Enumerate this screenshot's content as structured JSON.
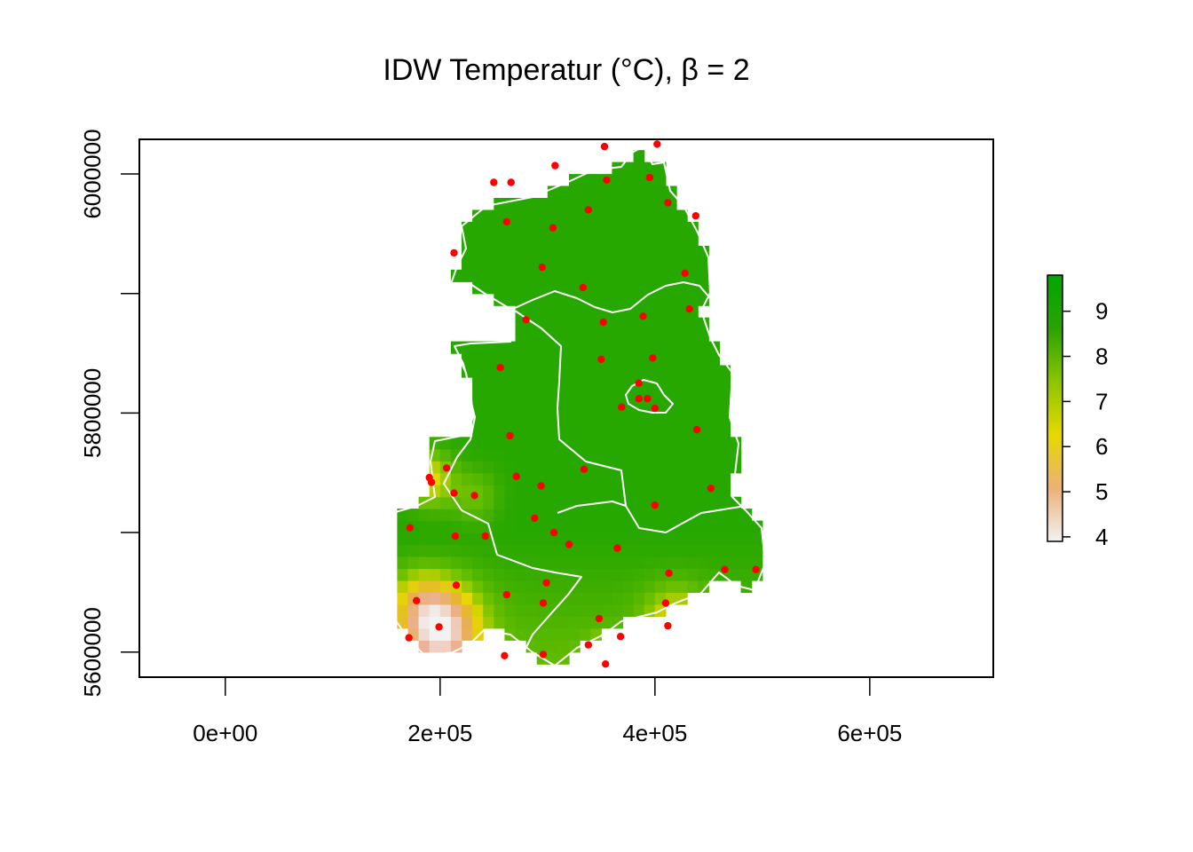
{
  "title": {
    "text": "IDW Temperatur (°C), β = 2"
  },
  "chart_data": {
    "type": "heatmap",
    "title": "IDW Temperatur (°C), β = 2",
    "xlim": [
      -80000,
      715000
    ],
    "ylim": [
      5579000,
      6029000
    ],
    "x_ticks": [
      {
        "value": 0,
        "label": "0e+00"
      },
      {
        "value": 200000,
        "label": "2e+05"
      },
      {
        "value": 400000,
        "label": "4e+05"
      },
      {
        "value": 600000,
        "label": "6e+05"
      }
    ],
    "y_ticks": [
      {
        "value": 5600000,
        "label": "5600000"
      },
      {
        "value": 5700000,
        "label": ""
      },
      {
        "value": 5800000,
        "label": "5800000"
      },
      {
        "value": 5900000,
        "label": ""
      },
      {
        "value": 6000000,
        "label": "6000000"
      }
    ],
    "legend": {
      "placement": "right",
      "range": [
        3.9,
        9.8
      ],
      "ticks": [
        {
          "value": 4,
          "label": "4"
        },
        {
          "value": 5,
          "label": "5"
        },
        {
          "value": 6,
          "label": "6"
        },
        {
          "value": 7,
          "label": "7"
        },
        {
          "value": 8,
          "label": "8"
        },
        {
          "value": 9,
          "label": "9"
        }
      ],
      "colors": [
        "#f2f2f2",
        "#ecb176",
        "#e6d800",
        "#8bc500",
        "#2aa300",
        "#00a600"
      ]
    },
    "station_color": "#ff0000",
    "border_color": "#ffffff",
    "stations": [
      {
        "x": 353000,
        "y": 6023000
      },
      {
        "x": 402000,
        "y": 6025000
      },
      {
        "x": 307000,
        "y": 6007000
      },
      {
        "x": 250000,
        "y": 5993000
      },
      {
        "x": 266000,
        "y": 5993000
      },
      {
        "x": 355000,
        "y": 5995000
      },
      {
        "x": 395000,
        "y": 5997000
      },
      {
        "x": 262000,
        "y": 5960000
      },
      {
        "x": 338000,
        "y": 5970000
      },
      {
        "x": 305000,
        "y": 5955000
      },
      {
        "x": 412000,
        "y": 5976000
      },
      {
        "x": 438000,
        "y": 5965000
      },
      {
        "x": 213000,
        "y": 5934000
      },
      {
        "x": 295000,
        "y": 5922000
      },
      {
        "x": 428000,
        "y": 5917000
      },
      {
        "x": 333000,
        "y": 5905000
      },
      {
        "x": 280000,
        "y": 5878000
      },
      {
        "x": 352000,
        "y": 5876000
      },
      {
        "x": 389000,
        "y": 5881000
      },
      {
        "x": 432000,
        "y": 5887000
      },
      {
        "x": 256000,
        "y": 5838000
      },
      {
        "x": 350000,
        "y": 5845000
      },
      {
        "x": 385000,
        "y": 5825000
      },
      {
        "x": 398000,
        "y": 5846000
      },
      {
        "x": 369000,
        "y": 5805000
      },
      {
        "x": 385000,
        "y": 5812000
      },
      {
        "x": 393000,
        "y": 5812000
      },
      {
        "x": 400000,
        "y": 5804000
      },
      {
        "x": 265000,
        "y": 5781000
      },
      {
        "x": 439000,
        "y": 5786000
      },
      {
        "x": 206000,
        "y": 5754000
      },
      {
        "x": 190000,
        "y": 5746000
      },
      {
        "x": 192000,
        "y": 5742000
      },
      {
        "x": 334000,
        "y": 5753000
      },
      {
        "x": 271000,
        "y": 5747000
      },
      {
        "x": 294000,
        "y": 5739000
      },
      {
        "x": 213000,
        "y": 5733000
      },
      {
        "x": 232000,
        "y": 5731000
      },
      {
        "x": 452000,
        "y": 5737000
      },
      {
        "x": 400000,
        "y": 5723000
      },
      {
        "x": 288000,
        "y": 5712000
      },
      {
        "x": 172000,
        "y": 5704000
      },
      {
        "x": 214000,
        "y": 5697000
      },
      {
        "x": 242000,
        "y": 5697000
      },
      {
        "x": 306000,
        "y": 5700000
      },
      {
        "x": 320000,
        "y": 5690000
      },
      {
        "x": 365000,
        "y": 5687000
      },
      {
        "x": 413000,
        "y": 5666000
      },
      {
        "x": 465000,
        "y": 5669000
      },
      {
        "x": 494000,
        "y": 5669000
      },
      {
        "x": 215000,
        "y": 5656000
      },
      {
        "x": 299000,
        "y": 5658000
      },
      {
        "x": 262000,
        "y": 5648000
      },
      {
        "x": 178000,
        "y": 5643000
      },
      {
        "x": 296000,
        "y": 5641000
      },
      {
        "x": 410000,
        "y": 5641000
      },
      {
        "x": 348000,
        "y": 5628000
      },
      {
        "x": 199000,
        "y": 5621000
      },
      {
        "x": 412000,
        "y": 5622000
      },
      {
        "x": 171000,
        "y": 5612000
      },
      {
        "x": 368000,
        "y": 5613000
      },
      {
        "x": 338000,
        "y": 5606000
      },
      {
        "x": 260000,
        "y": 5597000
      },
      {
        "x": 296000,
        "y": 5598000
      },
      {
        "x": 354000,
        "y": 5590000
      }
    ]
  }
}
